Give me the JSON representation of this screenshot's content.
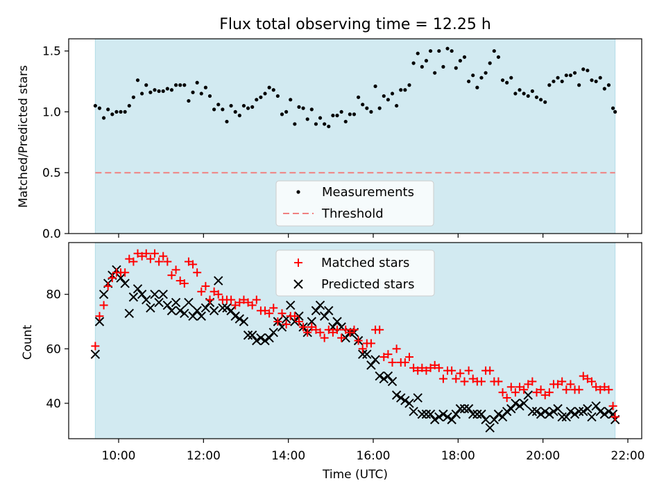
{
  "figure": {
    "title": "Flux total observing time = 12.25 h",
    "xlabel": "Time (UTC)",
    "x_ticks": [
      "10:00",
      "12:00",
      "14:00",
      "16:00",
      "18:00",
      "20:00",
      "22:00"
    ],
    "observing_window": [
      "09:27",
      "21:42"
    ],
    "observing_window_color": "#add8e6"
  },
  "chart_data": [
    {
      "type": "scatter",
      "ylabel": "Matched/Predicted stars",
      "xlim": [
        "08:50",
        "22:20"
      ],
      "ylim": [
        0,
        1.6
      ],
      "y_ticks": [
        "0.0",
        "0.5",
        "1.0",
        "1.5"
      ],
      "legend_position": "lower-center",
      "series": [
        {
          "name": "Measurements",
          "marker": "dot",
          "color": "#000000",
          "x": [
            "09:27",
            "09:33",
            "09:39",
            "09:45",
            "09:51",
            "09:57",
            "10:03",
            "10:09",
            "10:15",
            "10:21",
            "10:27",
            "10:33",
            "10:39",
            "10:45",
            "10:51",
            "10:57",
            "11:03",
            "11:09",
            "11:15",
            "11:21",
            "11:27",
            "11:33",
            "11:39",
            "11:45",
            "11:51",
            "11:57",
            "12:03",
            "12:09",
            "12:15",
            "12:21",
            "12:27",
            "12:33",
            "12:39",
            "12:45",
            "12:51",
            "12:57",
            "13:03",
            "13:09",
            "13:15",
            "13:21",
            "13:27",
            "13:33",
            "13:39",
            "13:45",
            "13:51",
            "13:57",
            "14:03",
            "14:09",
            "14:15",
            "14:21",
            "14:27",
            "14:33",
            "14:39",
            "14:45",
            "14:51",
            "14:57",
            "15:03",
            "15:09",
            "15:15",
            "15:21",
            "15:27",
            "15:33",
            "15:39",
            "15:45",
            "15:51",
            "15:57",
            "16:03",
            "16:09",
            "16:15",
            "16:21",
            "16:27",
            "16:33",
            "16:39",
            "16:45",
            "16:51",
            "16:57",
            "17:03",
            "17:09",
            "17:15",
            "17:21",
            "17:27",
            "17:33",
            "17:39",
            "17:45",
            "17:51",
            "17:57",
            "18:03",
            "18:09",
            "18:15",
            "18:21",
            "18:27",
            "18:33",
            "18:39",
            "18:45",
            "18:51",
            "18:57",
            "19:03",
            "19:09",
            "19:15",
            "19:21",
            "19:27",
            "19:33",
            "19:39",
            "19:45",
            "19:51",
            "19:57",
            "20:03",
            "20:09",
            "20:15",
            "20:21",
            "20:27",
            "20:33",
            "20:39",
            "20:45",
            "20:51",
            "20:57",
            "21:03",
            "21:09",
            "21:15",
            "21:21",
            "21:27",
            "21:33",
            "21:39",
            "21:42"
          ],
          "y": [
            1.05,
            1.03,
            0.95,
            1.02,
            0.98,
            1.0,
            1.0,
            1.0,
            1.05,
            1.12,
            1.26,
            1.15,
            1.22,
            1.16,
            1.18,
            1.17,
            1.17,
            1.19,
            1.18,
            1.22,
            1.22,
            1.22,
            1.09,
            1.16,
            1.24,
            1.15,
            1.2,
            1.13,
            1.02,
            1.06,
            1.02,
            0.92,
            1.05,
            1.0,
            0.97,
            1.05,
            1.03,
            1.04,
            1.1,
            1.12,
            1.15,
            1.2,
            1.18,
            1.13,
            0.98,
            1.0,
            1.1,
            0.9,
            1.04,
            1.03,
            0.94,
            1.02,
            0.9,
            0.95,
            0.9,
            0.88,
            0.97,
            0.97,
            1.0,
            0.92,
            0.98,
            0.98,
            1.12,
            1.06,
            1.03,
            1.0,
            1.21,
            1.03,
            1.13,
            1.1,
            1.15,
            1.05,
            1.18,
            1.18,
            1.22,
            1.4,
            1.48,
            1.37,
            1.42,
            1.5,
            1.32,
            1.5,
            1.37,
            1.52,
            1.5,
            1.36,
            1.42,
            1.45,
            1.25,
            1.3,
            1.2,
            1.28,
            1.32,
            1.4,
            1.5,
            1.45,
            1.26,
            1.24,
            1.28,
            1.15,
            1.18,
            1.15,
            1.13,
            1.17,
            1.12,
            1.1,
            1.08,
            1.22,
            1.25,
            1.28,
            1.25,
            1.3,
            1.3,
            1.32,
            1.22,
            1.35,
            1.34,
            1.26,
            1.25,
            1.28,
            1.19,
            1.22,
            1.03,
            1.0
          ],
          "note_points_shown": "approximate"
        }
      ],
      "threshold": {
        "name": "Threshold",
        "value": 0.5,
        "color": "#f08080",
        "style": "dashed"
      }
    },
    {
      "type": "scatter",
      "ylabel": "Count",
      "xlim": [
        "08:50",
        "22:20"
      ],
      "ylim": [
        27,
        99
      ],
      "y_ticks": [
        "40",
        "60",
        "80"
      ],
      "legend_position": "top-center",
      "series": [
        {
          "name": "Matched stars",
          "marker": "plus",
          "color": "#ff0000",
          "x": [
            "09:27",
            "09:33",
            "09:39",
            "09:45",
            "09:51",
            "09:57",
            "10:03",
            "10:09",
            "10:15",
            "10:21",
            "10:27",
            "10:33",
            "10:39",
            "10:45",
            "10:51",
            "10:57",
            "11:03",
            "11:09",
            "11:15",
            "11:21",
            "11:27",
            "11:33",
            "11:39",
            "11:45",
            "11:51",
            "11:57",
            "12:03",
            "12:09",
            "12:15",
            "12:21",
            "12:27",
            "12:33",
            "12:39",
            "12:45",
            "12:51",
            "12:57",
            "13:03",
            "13:09",
            "13:15",
            "13:21",
            "13:27",
            "13:33",
            "13:39",
            "13:45",
            "13:51",
            "13:57",
            "14:03",
            "14:09",
            "14:15",
            "14:21",
            "14:27",
            "14:33",
            "14:39",
            "14:45",
            "14:51",
            "14:57",
            "15:03",
            "15:09",
            "15:15",
            "15:21",
            "15:27",
            "15:33",
            "15:39",
            "15:45",
            "15:51",
            "15:57",
            "16:03",
            "16:09",
            "16:15",
            "16:21",
            "16:27",
            "16:33",
            "16:39",
            "16:45",
            "16:51",
            "16:57",
            "17:03",
            "17:09",
            "17:15",
            "17:21",
            "17:27",
            "17:33",
            "17:39",
            "17:45",
            "17:51",
            "17:57",
            "18:03",
            "18:09",
            "18:15",
            "18:21",
            "18:27",
            "18:33",
            "18:39",
            "18:45",
            "18:51",
            "18:57",
            "19:03",
            "19:09",
            "19:15",
            "19:21",
            "19:27",
            "19:33",
            "19:39",
            "19:45",
            "19:51",
            "19:57",
            "20:03",
            "20:09",
            "20:15",
            "20:21",
            "20:27",
            "20:33",
            "20:39",
            "20:45",
            "20:51",
            "20:57",
            "21:03",
            "21:09",
            "21:15",
            "21:21",
            "21:27",
            "21:33",
            "21:39",
            "21:42"
          ],
          "y": [
            61,
            72,
            76,
            83,
            86,
            88,
            88,
            88,
            93,
            92,
            95,
            94,
            95,
            93,
            95,
            92,
            94,
            92,
            87,
            89,
            85,
            84,
            92,
            91,
            88,
            81,
            83,
            78,
            81,
            80,
            78,
            78,
            78,
            76,
            77,
            78,
            77,
            76,
            78,
            74,
            74,
            73,
            75,
            70,
            73,
            69,
            72,
            72,
            70,
            68,
            66,
            68,
            67,
            66,
            64,
            67,
            66,
            67,
            64,
            67,
            66,
            67,
            63,
            60,
            62,
            62,
            67,
            67,
            57,
            58,
            55,
            60,
            55,
            55,
            57,
            53,
            52,
            53,
            52,
            53,
            54,
            53,
            49,
            52,
            52,
            49,
            51,
            48,
            52,
            49,
            48,
            48,
            52,
            52,
            48,
            48,
            44,
            42,
            46,
            44,
            46,
            45,
            47,
            48,
            44,
            45,
            43,
            44,
            47,
            47,
            48,
            45,
            47,
            45,
            45,
            50,
            49,
            48,
            46,
            45,
            46,
            45,
            39,
            35
          ],
          "note_points_shown": "approximate"
        },
        {
          "name": "Predicted stars",
          "marker": "x",
          "color": "#000000",
          "x": [
            "09:27",
            "09:33",
            "09:39",
            "09:45",
            "09:51",
            "09:57",
            "10:03",
            "10:09",
            "10:15",
            "10:21",
            "10:27",
            "10:33",
            "10:39",
            "10:45",
            "10:51",
            "10:57",
            "11:03",
            "11:09",
            "11:15",
            "11:21",
            "11:27",
            "11:33",
            "11:39",
            "11:45",
            "11:51",
            "11:57",
            "12:03",
            "12:09",
            "12:15",
            "12:21",
            "12:27",
            "12:33",
            "12:39",
            "12:45",
            "12:51",
            "12:57",
            "13:03",
            "13:09",
            "13:15",
            "13:21",
            "13:27",
            "13:33",
            "13:39",
            "13:45",
            "13:51",
            "13:57",
            "14:03",
            "14:09",
            "14:15",
            "14:21",
            "14:27",
            "14:33",
            "14:39",
            "14:45",
            "14:51",
            "14:57",
            "15:03",
            "15:09",
            "15:15",
            "15:21",
            "15:27",
            "15:33",
            "15:39",
            "15:45",
            "15:51",
            "15:57",
            "16:03",
            "16:09",
            "16:15",
            "16:21",
            "16:27",
            "16:33",
            "16:39",
            "16:45",
            "16:51",
            "16:57",
            "17:03",
            "17:09",
            "17:15",
            "17:21",
            "17:27",
            "17:33",
            "17:39",
            "17:45",
            "17:51",
            "17:57",
            "18:03",
            "18:09",
            "18:15",
            "18:21",
            "18:27",
            "18:33",
            "18:39",
            "18:45",
            "18:51",
            "18:57",
            "19:03",
            "19:09",
            "19:15",
            "19:21",
            "19:27",
            "19:33",
            "19:39",
            "19:45",
            "19:51",
            "19:57",
            "20:03",
            "20:09",
            "20:15",
            "20:21",
            "20:27",
            "20:33",
            "20:39",
            "20:45",
            "20:51",
            "20:57",
            "21:03",
            "21:09",
            "21:15",
            "21:21",
            "21:27",
            "21:33",
            "21:39",
            "21:42"
          ],
          "y": [
            58,
            70,
            80,
            84,
            87,
            89,
            86,
            84,
            73,
            79,
            82,
            80,
            78,
            75,
            80,
            77,
            80,
            76,
            74,
            77,
            74,
            73,
            77,
            72,
            74,
            72,
            75,
            77,
            74,
            85,
            75,
            75,
            74,
            72,
            71,
            70,
            65,
            65,
            63,
            64,
            63,
            64,
            66,
            70,
            68,
            71,
            76,
            70,
            72,
            68,
            66,
            70,
            74,
            76,
            72,
            74,
            68,
            70,
            68,
            64,
            66,
            66,
            63,
            58,
            58,
            54,
            56,
            50,
            49,
            50,
            48,
            43,
            42,
            41,
            40,
            37,
            42,
            36,
            36,
            36,
            34,
            35,
            36,
            35,
            34,
            36,
            38,
            38,
            38,
            36,
            36,
            36,
            34,
            31,
            34,
            36,
            35,
            37,
            38,
            40,
            39,
            40,
            43,
            37,
            37,
            36,
            37,
            36,
            37,
            38,
            35,
            35,
            37,
            36,
            37,
            37,
            38,
            35,
            39,
            37,
            36,
            37,
            36,
            34
          ],
          "note_points_shown": "approximate"
        }
      ]
    }
  ]
}
